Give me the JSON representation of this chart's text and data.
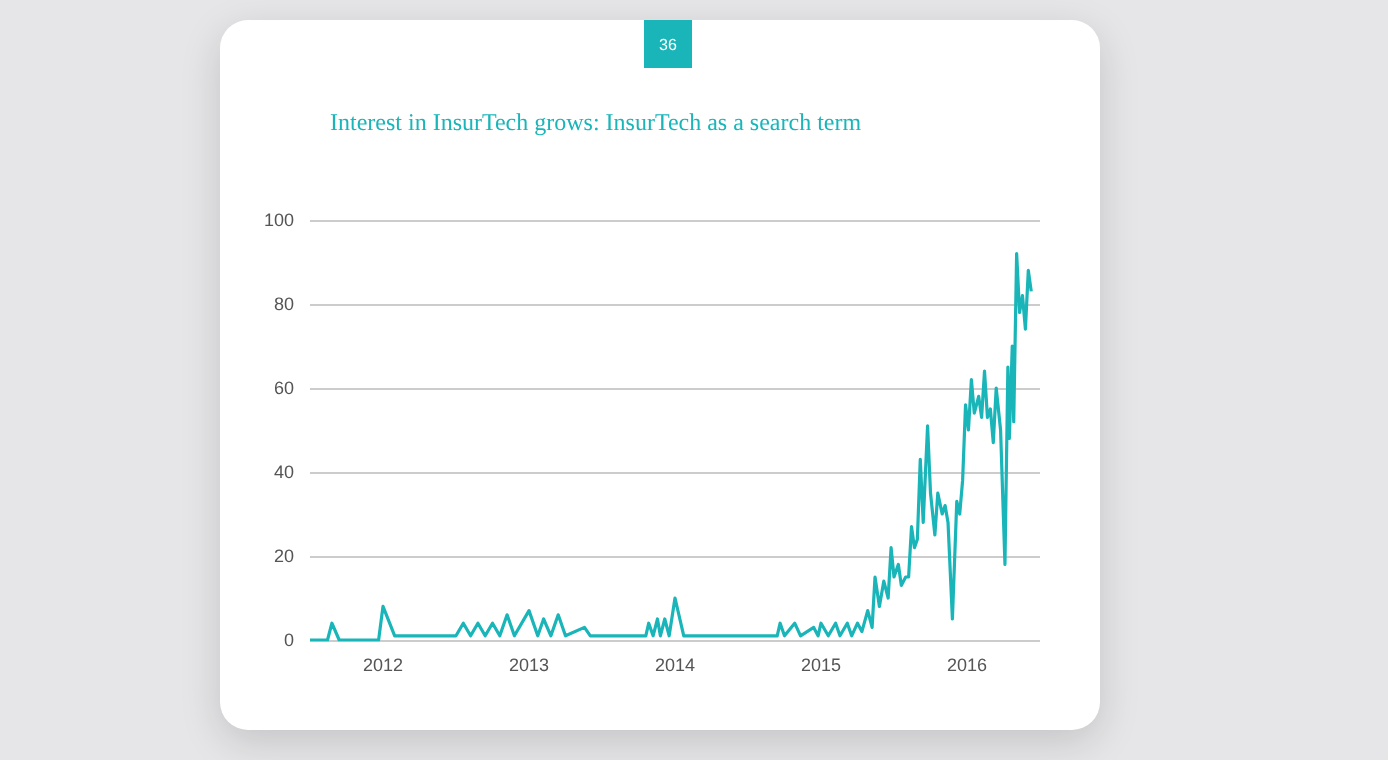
{
  "chart_data": {
    "type": "line",
    "title": "Interest in InsurTech grows: InsurTech as a search term",
    "annotations": [
      "36"
    ],
    "x": [
      2011.5,
      2011.62,
      2011.65,
      2011.7,
      2011.97,
      2012.0,
      2012.08,
      2012.5,
      2012.55,
      2012.6,
      2012.65,
      2012.7,
      2012.75,
      2012.8,
      2012.85,
      2012.9,
      2013.0,
      2013.06,
      2013.1,
      2013.15,
      2013.2,
      2013.25,
      2013.38,
      2013.42,
      2013.8,
      2013.82,
      2013.85,
      2013.88,
      2013.9,
      2013.93,
      2013.96,
      2014.0,
      2014.06,
      2014.7,
      2014.72,
      2014.75,
      2014.82,
      2014.86,
      2014.95,
      2014.98,
      2015.0,
      2015.05,
      2015.1,
      2015.13,
      2015.18,
      2015.21,
      2015.25,
      2015.28,
      2015.32,
      2015.35,
      2015.37,
      2015.4,
      2015.43,
      2015.46,
      2015.48,
      2015.5,
      2015.53,
      2015.55,
      2015.58,
      2015.6,
      2015.62,
      2015.64,
      2015.66,
      2015.68,
      2015.7,
      2015.73,
      2015.75,
      2015.78,
      2015.8,
      2015.83,
      2015.85,
      2015.87,
      2015.9,
      2015.93,
      2015.95,
      2015.97,
      2015.99,
      2016.01,
      2016.03,
      2016.05,
      2016.08,
      2016.1,
      2016.12,
      2016.14,
      2016.16,
      2016.18,
      2016.2,
      2016.23,
      2016.26,
      2016.28,
      2016.29,
      2016.31,
      2016.32,
      2016.34,
      2016.36,
      2016.38,
      2016.4,
      2016.42,
      2016.44
    ],
    "series": [
      {
        "color": "#1ab5b8",
        "values": [
          0,
          0,
          4,
          0,
          0,
          8,
          1,
          1,
          4,
          1,
          4,
          1,
          4,
          1,
          6,
          1,
          7,
          1,
          5,
          1,
          6,
          1,
          3,
          1,
          1,
          4,
          1,
          5,
          1,
          5,
          1,
          10,
          1,
          1,
          4,
          1,
          4,
          1,
          3,
          1,
          4,
          1,
          4,
          1,
          4,
          1,
          4,
          2,
          7,
          3,
          15,
          8,
          14,
          10,
          22,
          15,
          18,
          13,
          15,
          15,
          27,
          22,
          24,
          43,
          28,
          51,
          35,
          25,
          35,
          30,
          32,
          28,
          5,
          33,
          30,
          38,
          56,
          50,
          62,
          54,
          58,
          53,
          64,
          53,
          55,
          47,
          60,
          50,
          18,
          65,
          48,
          70,
          52,
          92,
          78,
          82,
          74,
          88,
          83
        ]
      }
    ],
    "xlim": [
      2011.5,
      2016.5
    ],
    "xticks": [
      2012,
      2013,
      2014,
      2015,
      2016
    ],
    "ylim": [
      0,
      100
    ],
    "yticks": [
      0,
      20,
      40,
      60,
      80,
      100
    ],
    "grid": "y",
    "marker": "none",
    "line_style": "solid"
  }
}
